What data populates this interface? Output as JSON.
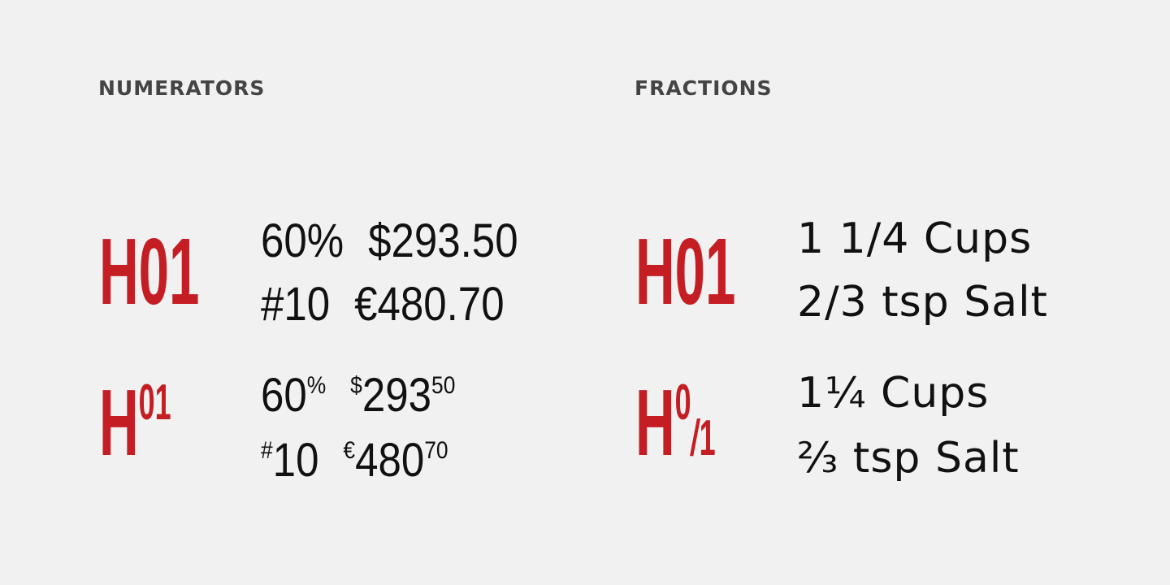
{
  "sections": {
    "numerators": {
      "title": "NUMERATORS",
      "sample_regular": "H01",
      "sample_sup": {
        "base": "H",
        "sup": "01"
      },
      "regular_rows": [
        [
          "60%",
          "$293.50"
        ],
        [
          "#10",
          "€480.70"
        ]
      ],
      "sup_rows": [
        [
          {
            "base": "60",
            "sup": "%"
          },
          {
            "pre": "$",
            "base": "293",
            "sup": "50"
          }
        ],
        [
          {
            "pre": "#",
            "base": "10"
          },
          {
            "pre": "€",
            "base": "480",
            "sup": "70"
          }
        ]
      ]
    },
    "fractions": {
      "title": "FRACTIONS",
      "sample_regular": "H01",
      "sample_frac": {
        "base": "H",
        "num": "0",
        "slash": "/",
        "den": "1"
      },
      "regular_rows": [
        "1 1/4 Cups",
        "2/3 tsp Salt"
      ],
      "frac_rows": [
        "1¼ Cups",
        "⅔ tsp Salt"
      ]
    }
  },
  "colors": {
    "accent": "#c41e24",
    "background": "#f0f1f0",
    "heading": "#444444",
    "text": "#111111"
  }
}
